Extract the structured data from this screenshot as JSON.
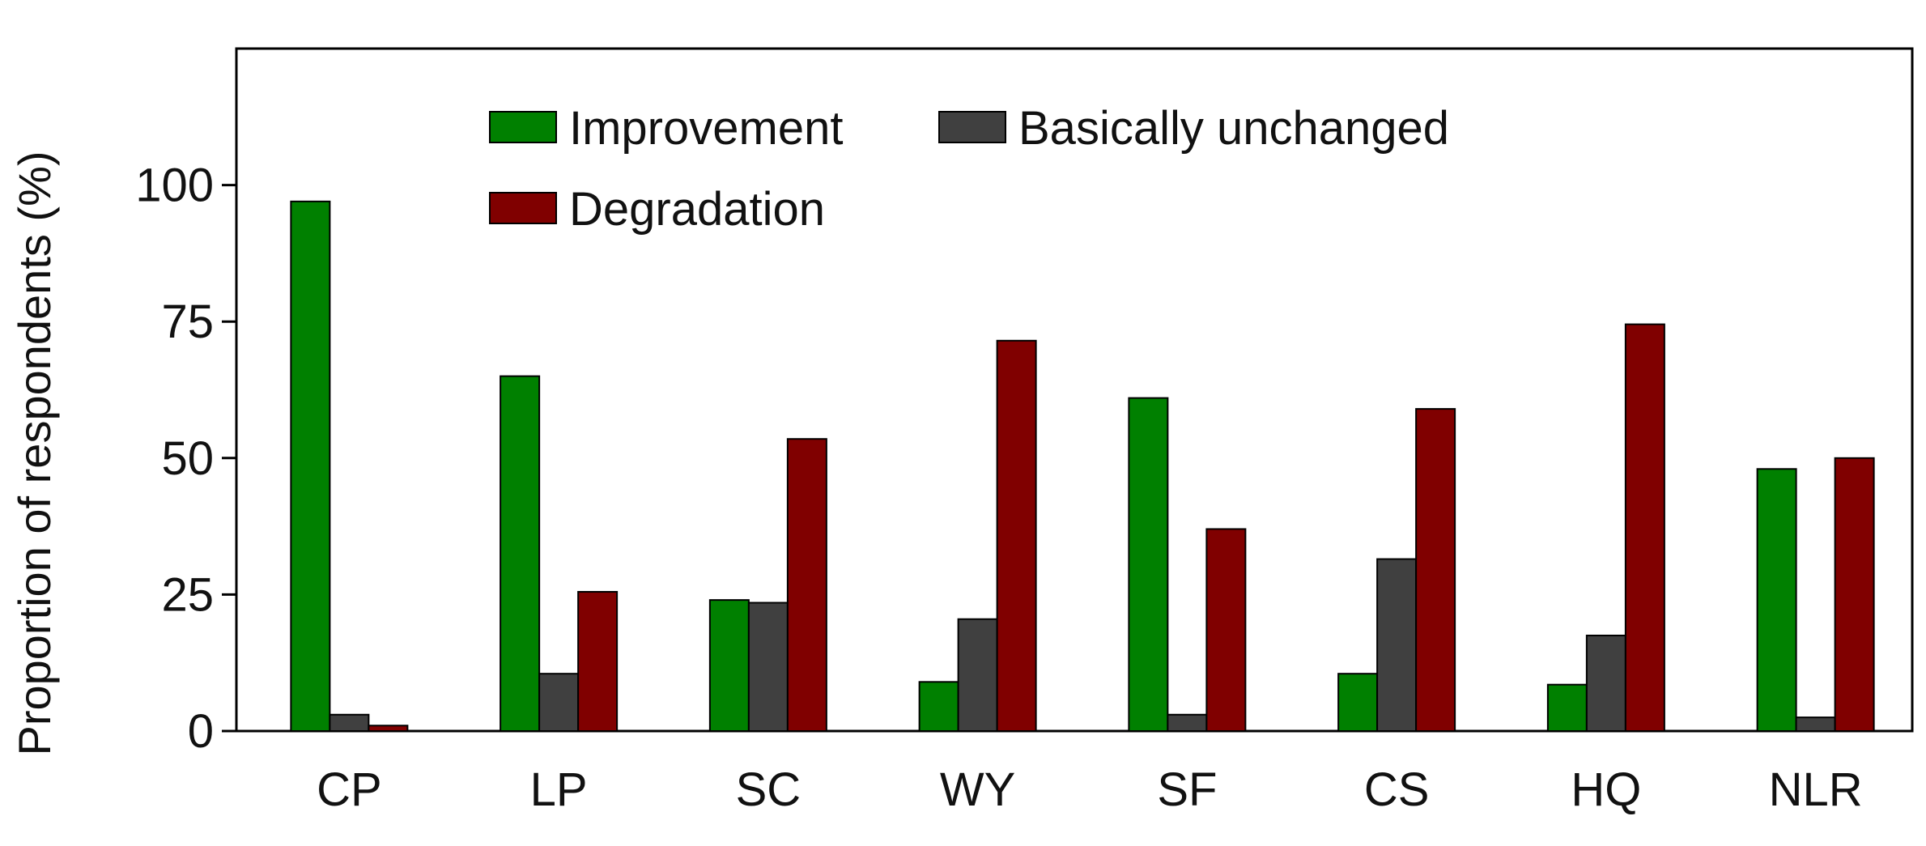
{
  "chart_data": {
    "type": "bar",
    "title": "",
    "xlabel": "",
    "ylabel": "Proportion of respondents (%)",
    "ylim": [
      0,
      125
    ],
    "yticks": [
      0,
      25,
      50,
      75,
      100
    ],
    "grid": false,
    "legend_position": "top",
    "categories": [
      "CP",
      "LP",
      "SC",
      "WY",
      "SF",
      "CS",
      "HQ",
      "NLR"
    ],
    "series": [
      {
        "name": "Improvement",
        "color": "#008000",
        "values": [
          97,
          65,
          24,
          9,
          61,
          10.5,
          8.5,
          48
        ]
      },
      {
        "name": "Basically unchanged",
        "color": "#404040",
        "values": [
          3,
          10.5,
          23.5,
          20.5,
          3,
          31.5,
          17.5,
          2.5
        ]
      },
      {
        "name": "Degradation",
        "color": "#800000",
        "values": [
          1,
          25.5,
          53.5,
          71.5,
          37,
          59,
          74.5,
          50
        ]
      }
    ]
  }
}
